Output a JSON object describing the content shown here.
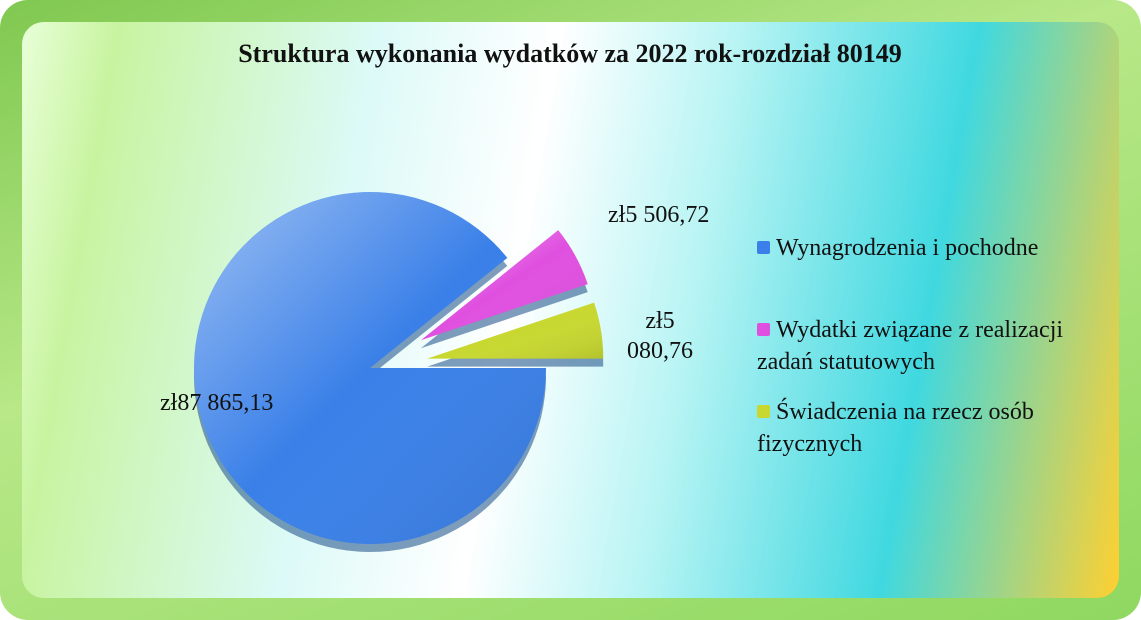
{
  "chart_data": {
    "type": "pie",
    "title": "Struktura wykonania wydatków za 2022 rok-rozdział 80149",
    "categories": [
      "Wynagrodzenia i pochodne",
      "Wydatki związane z realizacji zadań statutowych",
      "Świadczenia na rzecz osób fizycznych"
    ],
    "values": [
      87865.13,
      5506.72,
      5080.76
    ],
    "value_labels": [
      "zł87 865,13",
      "zł5 506,72",
      "zł5 080,76"
    ],
    "colors": [
      "#3a80e8",
      "#e050e0",
      "#c8d830"
    ]
  }
}
